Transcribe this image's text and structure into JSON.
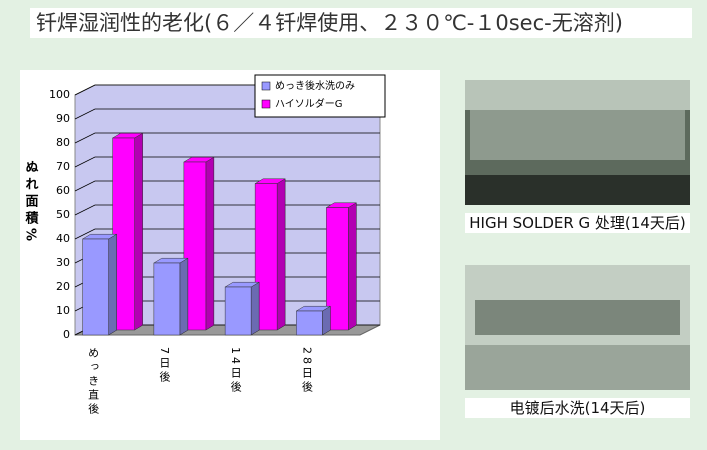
{
  "chart_data": {
    "type": "bar3d",
    "title": "钎焊湿润性的老化(６／４钎焊使用、２３０℃-１0sec-无溶剂)",
    "y_label": "ぬれ面積%",
    "categories": [
      "めっき直後",
      "7日後",
      "14日後",
      "28日後"
    ],
    "series": [
      {
        "name": "めっき後水洗のみ",
        "color": "#9999ff",
        "values": [
          40,
          30,
          20,
          10
        ]
      },
      {
        "name": "ハイソルダーG",
        "color": "#ff00ff",
        "values": [
          80,
          70,
          61,
          51
        ]
      }
    ],
    "ylim": [
      0,
      100
    ],
    "yticks": [
      0,
      10,
      20,
      30,
      40,
      50,
      60,
      70,
      80,
      90,
      100
    ],
    "grid": true
  },
  "photos": [
    {
      "caption": "HIGH SOLDER G 处理(14天后)"
    },
    {
      "caption": "电镀后水洗(14天后)"
    }
  ]
}
